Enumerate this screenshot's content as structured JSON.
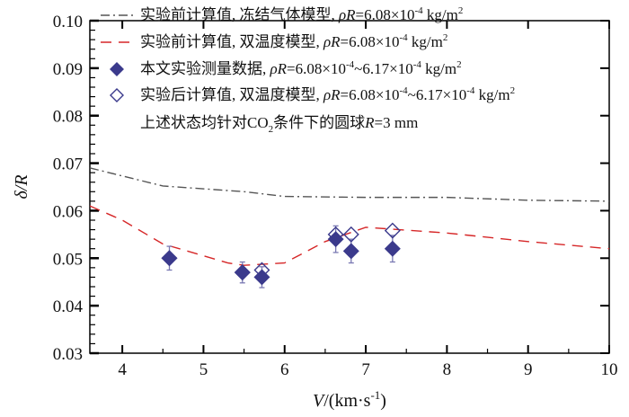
{
  "chart_data": {
    "type": "line",
    "xlabel": "V/(km·s-1)",
    "xlabel_parts": {
      "var": "V",
      "unit": "/(km·s",
      "exp": "-1",
      "close": ")"
    },
    "ylabel": "δ/R",
    "xlim": [
      3.6,
      10
    ],
    "ylim": [
      0.03,
      0.1
    ],
    "xticks": [
      "4",
      "5",
      "6",
      "7",
      "8",
      "9",
      "10"
    ],
    "yticks": [
      "0.03",
      "0.04",
      "0.05",
      "0.06",
      "0.07",
      "0.08",
      "0.09",
      "0.10"
    ],
    "legend_placement": "top",
    "series": [
      {
        "name": "实验前计算值, 冻结气体模型, ρR=6.08×10-4 kg/m2",
        "style": "dash-dot",
        "color": "#555555",
        "x": [
          3.6,
          4.5,
          5.5,
          6.0,
          7.0,
          8.0,
          9.0,
          10.0
        ],
        "y": [
          0.069,
          0.0652,
          0.064,
          0.063,
          0.0628,
          0.0628,
          0.0622,
          0.062
        ]
      },
      {
        "name": "实验前计算值, 双温度模型, ρR=6.08×10-4 kg/m2",
        "style": "dashed",
        "color": "#d62728",
        "x": [
          3.6,
          4.0,
          4.5,
          5.3,
          5.5,
          6.0,
          6.5,
          7.0,
          8.0,
          9.0,
          10.0
        ],
        "y": [
          0.061,
          0.058,
          0.053,
          0.049,
          0.0485,
          0.049,
          0.0535,
          0.0565,
          0.0553,
          0.0535,
          0.052
        ]
      },
      {
        "name": "本文实验测量数据, ρR=6.08×10-4~6.17×10-4 kg/m2",
        "style": "filled-diamond",
        "color": "#3b3a8c",
        "x": [
          4.58,
          5.48,
          5.72,
          6.63,
          6.82,
          7.33
        ],
        "y": [
          0.05,
          0.047,
          0.046,
          0.054,
          0.0515,
          0.052
        ],
        "err": [
          0.0025,
          0.0022,
          0.0022,
          0.0028,
          0.0025,
          0.0028
        ]
      },
      {
        "name": "实验后计算值, 双温度模型, ρR=6.08×10-4~6.17×10-4 kg/m2",
        "style": "open-diamond",
        "color": "#3b3a8c",
        "x": [
          4.58,
          5.48,
          5.72,
          6.63,
          6.82,
          7.33
        ],
        "y": [
          0.05,
          0.047,
          0.0475,
          0.055,
          0.055,
          0.0558
        ]
      }
    ],
    "legend": [
      {
        "pre": "实验前计算值, 冻结气体模型, ",
        "mid": "=6.08×10",
        "e1": "-4",
        "mid2": "",
        "e2": "",
        "unit": " kg/m",
        "ue": "2"
      },
      {
        "pre": "实验前计算值, 双温度模型, ",
        "mid": "=6.08×10",
        "e1": "-4",
        "mid2": "",
        "e2": "",
        "unit": " kg/m",
        "ue": "2"
      },
      {
        "pre": "本文实验测量数据, ",
        "mid": "=6.08×10",
        "e1": "-4",
        "mid2": "~6.17×10",
        "e2": "-4",
        "unit": " kg/m",
        "ue": "2"
      },
      {
        "pre": "实验后计算值, 双温度模型, ",
        "mid": "=6.08×10",
        "e1": "-4",
        "mid2": "~6.17×10",
        "e2": "-4",
        "unit": " kg/m",
        "ue": "2"
      }
    ],
    "legend_var": "ρR",
    "annotation": {
      "a": "上述状态均针对CO",
      "sub": "2",
      "b": "条件下的圆球",
      "var": "R",
      "c": "=3 mm"
    }
  }
}
